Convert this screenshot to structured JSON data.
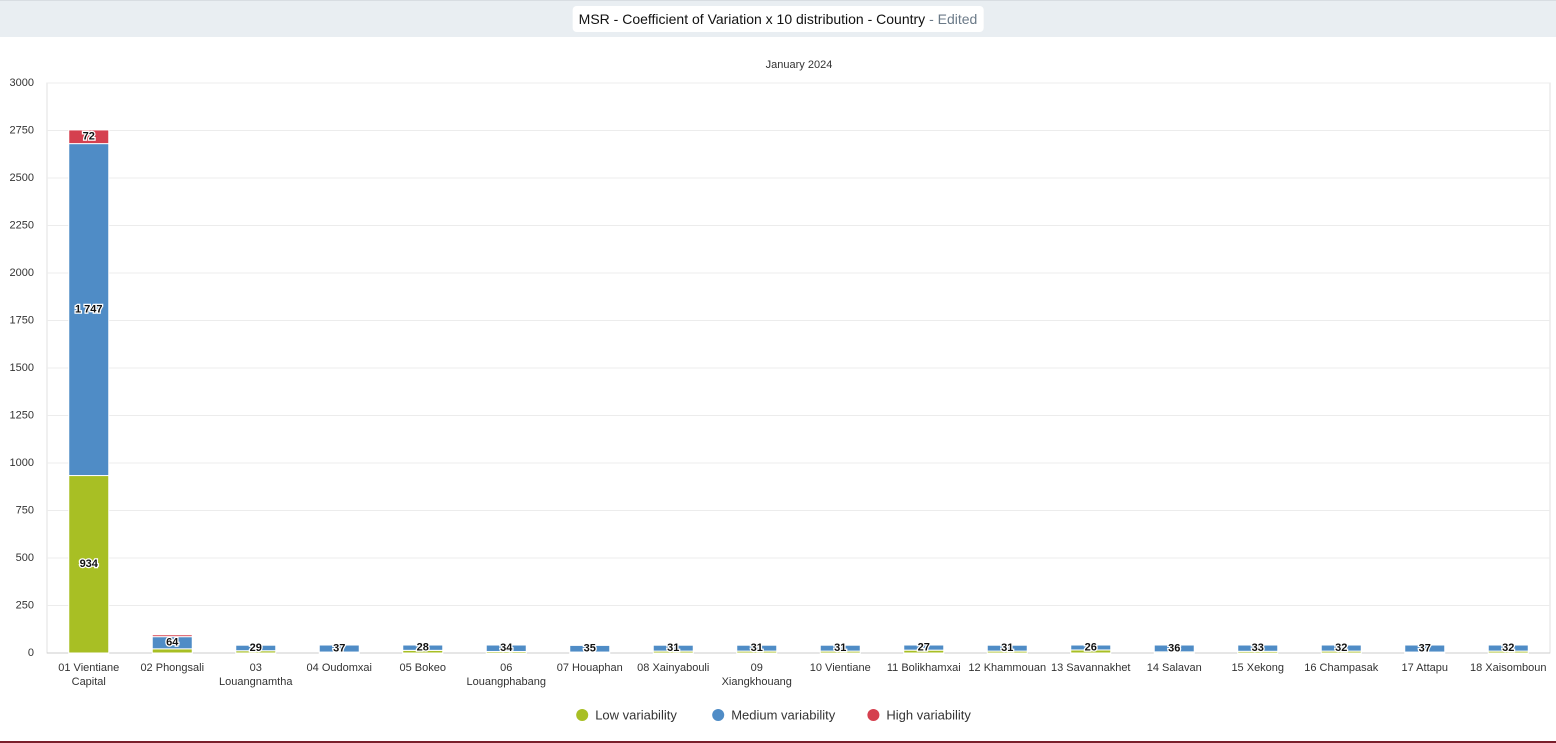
{
  "chart_data": {
    "type": "stacked_bar",
    "title": "MSR - Coefficient of Variation x 10 distribution - Country",
    "title_note": "- Edited",
    "subtitle": "January 2024",
    "categories": [
      "01 Vientiane Capital",
      "02 Phongsali",
      "03 Louangnamtha",
      "04 Oudomxai",
      "05 Bokeo",
      "06 Louangphabang",
      "07 Houaphan",
      "08 Xainyabouli",
      "09 Xiangkhouang",
      "10 Vientiane",
      "11 Bolikhamxai",
      "12 Khammouan",
      "13 Savannakhet",
      "14 Salavan",
      "15 Xekong",
      "16 Champasak",
      "17 Attapu",
      "18 Xaisomboun"
    ],
    "series": [
      {
        "name": "Low variability",
        "color": "#a8bf24",
        "values": [
          934,
          22,
          12,
          5,
          14,
          8,
          5,
          10,
          10,
          10,
          15,
          10,
          16,
          6,
          9,
          10,
          5,
          10
        ],
        "value_labels": [
          "934",
          null,
          null,
          null,
          null,
          null,
          null,
          null,
          null,
          null,
          null,
          null,
          null,
          null,
          null,
          null,
          null,
          null
        ]
      },
      {
        "name": "Medium variability",
        "color": "#4f8cc6",
        "values": [
          1747,
          64,
          29,
          37,
          28,
          34,
          35,
          31,
          31,
          31,
          27,
          31,
          26,
          36,
          33,
          32,
          37,
          32
        ],
        "value_labels": [
          "1 747",
          "64",
          "29",
          "37",
          "28",
          "34",
          "35",
          "31",
          "31",
          "31",
          "27",
          "31",
          "26",
          "36",
          "33",
          "32",
          "37",
          "32"
        ]
      },
      {
        "name": "High variability",
        "color": "#d5404f",
        "values": [
          72,
          10,
          null,
          null,
          null,
          null,
          null,
          null,
          null,
          null,
          null,
          null,
          null,
          null,
          null,
          null,
          null,
          null
        ],
        "value_labels": [
          "72",
          null,
          null,
          null,
          null,
          null,
          null,
          null,
          null,
          null,
          null,
          null,
          null,
          null,
          null,
          null,
          null,
          null
        ]
      }
    ],
    "ylim": [
      0,
      3000
    ],
    "yticks": [
      0,
      250,
      500,
      750,
      1000,
      1250,
      1500,
      1750,
      2000,
      2250,
      2500,
      2750,
      3000
    ],
    "grid": true,
    "legend": "bottom"
  }
}
